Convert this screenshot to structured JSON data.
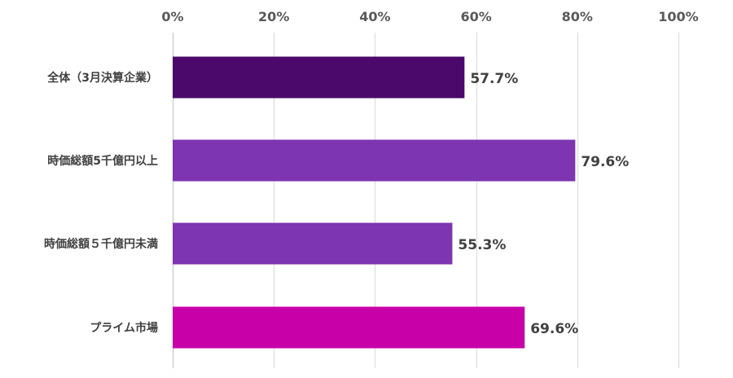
{
  "chart_data": {
    "type": "bar",
    "orientation": "horizontal",
    "title": "",
    "xlabel": "",
    "ylabel": "",
    "xlim": [
      0,
      100
    ],
    "tick_values": [
      0,
      20,
      40,
      60,
      80,
      100
    ],
    "tick_labels": [
      "0%",
      "20%",
      "40%",
      "60%",
      "80%",
      "100%"
    ],
    "categories": [
      "全体（3月決算企業）",
      "時価総額5千億円以上",
      "時価総額５千億円未満",
      "プライム市場"
    ],
    "values": [
      57.7,
      79.6,
      55.3,
      69.6
    ],
    "value_labels": [
      "57.7%",
      "79.6%",
      "55.3%",
      "69.6%"
    ],
    "colors": [
      "#4b0a6b",
      "#7e35b0",
      "#7e35b0",
      "#c800a8"
    ],
    "grid": true,
    "legend": "none"
  }
}
